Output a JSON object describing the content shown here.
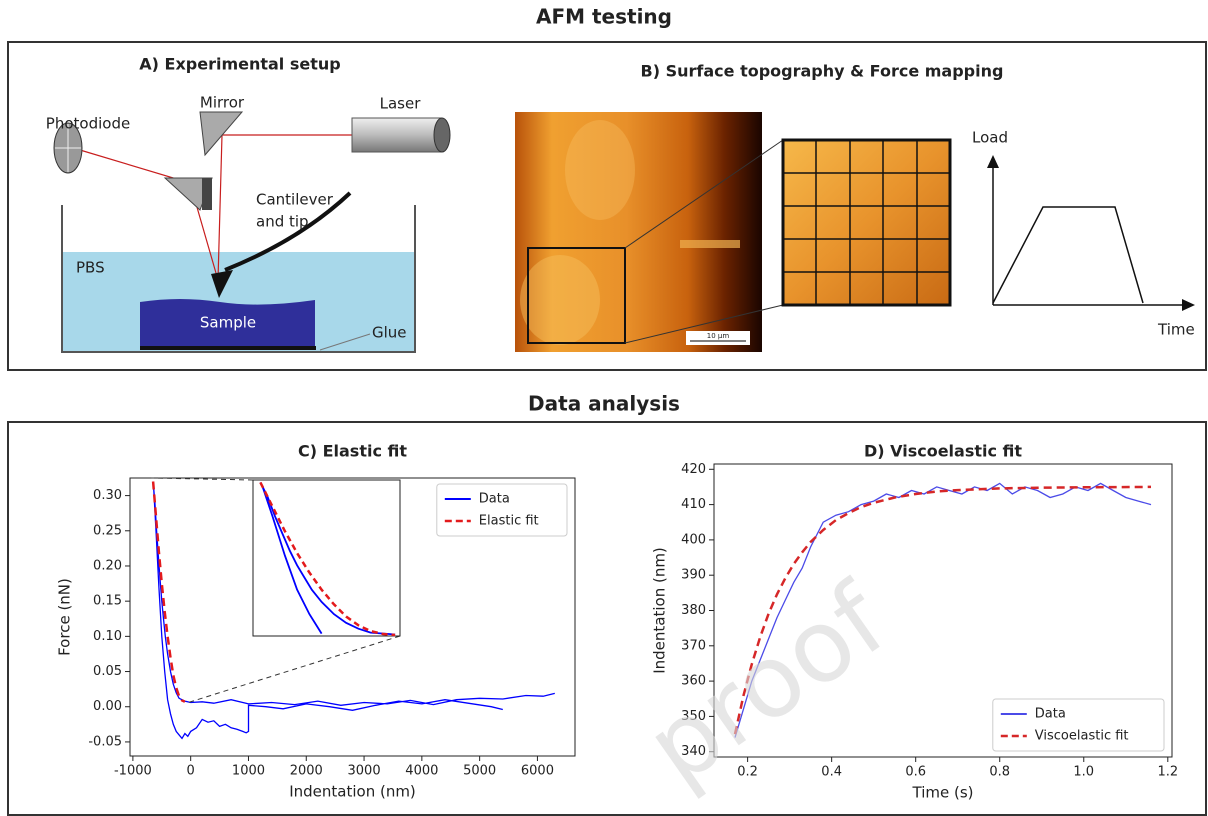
{
  "header": {
    "title": "AFM testing"
  },
  "setup": {
    "title": "A) Experimental setup",
    "labels": {
      "photodiode": "Photodiode",
      "mirror": "Mirror",
      "laser": "Laser",
      "cantilever": [
        "Cantilever",
        "and tip"
      ],
      "medium": "PBS",
      "sample": "Sample",
      "glue": "Glue"
    }
  },
  "mapping": {
    "title": "B) Surface topography & Force mapping",
    "scale_bar": "10 µm",
    "load": "Load",
    "time": "Time"
  },
  "analysis": {
    "title": "Data analysis"
  },
  "watermark": "proof",
  "chart_data": [
    {
      "type": "line",
      "title": "C) Elastic fit",
      "x_label": "Indentation (nm)",
      "y_label": "Force (nN)",
      "xlim": [
        -1050,
        6650
      ],
      "ylim": [
        -0.07,
        0.325
      ],
      "xticks": [
        -1000,
        0,
        1000,
        2000,
        3000,
        4000,
        5000,
        6000
      ],
      "yticks": [
        -0.05,
        {
          "value": 0,
          "label": "0.00"
        },
        0.05,
        {
          "value": 0.1,
          "label": "0.10"
        },
        0.15,
        {
          "value": 0.2,
          "label": "0.20"
        },
        0.25,
        {
          "value": 0.3,
          "label": "0.30"
        }
      ],
      "legend": "upper right",
      "inset_xlim": [
        -680,
        -80
      ],
      "inset_ylim": [
        0.005,
        0.325
      ],
      "series": [
        {
          "name": "Data",
          "color": "#0000ff",
          "linestyle": "solid",
          "x": [
            -650,
            -620,
            -590,
            -560,
            -530,
            -500,
            -470,
            -440,
            -400,
            -350,
            -300,
            -250,
            -200,
            -100,
            0,
            200,
            400,
            700,
            1000,
            1400,
            1800,
            2200,
            2600,
            3000,
            3400,
            3800,
            4200,
            4600,
            5000,
            5400,
            5800,
            6100,
            6300,
            null,
            -640,
            -600,
            -550,
            -500,
            -450,
            -400,
            -350,
            -300,
            -250,
            -200,
            -150,
            -100,
            -50,
            0,
            100,
            200,
            300,
            400,
            500,
            600,
            700,
            800,
            900,
            960,
            1000,
            1000,
            1300,
            1600,
            2000,
            2400,
            2800,
            3200,
            3600,
            4000,
            4400,
            4800,
            5200,
            5400
          ],
          "values": [
            0.32,
            0.29,
            0.25,
            0.215,
            0.18,
            0.15,
            0.125,
            0.1,
            0.075,
            0.05,
            0.032,
            0.02,
            0.012,
            0.008,
            0.006,
            0.007,
            0.005,
            0.01,
            0.004,
            0.006,
            0.003,
            0.008,
            0.002,
            0.006,
            0.004,
            0.009,
            0.003,
            0.01,
            0.012,
            0.011,
            0.016,
            0.015,
            0.019,
            null,
            0.31,
            0.25,
            0.17,
            0.1,
            0.05,
            0.01,
            -0.01,
            -0.025,
            -0.035,
            -0.04,
            -0.045,
            -0.038,
            -0.042,
            -0.035,
            -0.03,
            -0.018,
            -0.022,
            -0.02,
            -0.028,
            -0.025,
            -0.03,
            -0.032,
            -0.035,
            -0.037,
            -0.035,
            0.002,
            0.0,
            -0.003,
            0.004,
            0.0,
            -0.005,
            0.002,
            0.008,
            0.004,
            0.01,
            0.005,
            0.0,
            -0.004
          ]
        },
        {
          "name": "Elastic fit",
          "color": "#e31a1c",
          "linestyle": "dashed",
          "x": [
            -650,
            -600,
            -550,
            -500,
            -450,
            -400,
            -350,
            -300,
            -250,
            -200,
            -150,
            -100
          ],
          "values": [
            0.32,
            0.27,
            0.22,
            0.175,
            0.135,
            0.1,
            0.07,
            0.045,
            0.027,
            0.015,
            0.009,
            0.007
          ]
        }
      ]
    },
    {
      "type": "line",
      "title": "D) Viscoelastic fit",
      "x_label": "Time (s)",
      "y_label": "Indentation (nm)",
      "xlim": [
        0.12,
        1.21
      ],
      "ylim": [
        338.5,
        421.5
      ],
      "xticks": [
        0.2,
        0.4,
        0.6,
        0.8,
        {
          "value": 1,
          "label": "1.0"
        },
        1.2
      ],
      "yticks": [
        340,
        350,
        360,
        370,
        380,
        390,
        400,
        410,
        420
      ],
      "legend": "lower right",
      "series": [
        {
          "name": "Data",
          "color": "#4b4be8",
          "linestyle": "solid",
          "x": [
            0.17,
            0.19,
            0.21,
            0.23,
            0.25,
            0.27,
            0.29,
            0.31,
            0.33,
            0.35,
            0.38,
            0.41,
            0.44,
            0.47,
            0.5,
            0.53,
            0.56,
            0.59,
            0.62,
            0.65,
            0.68,
            0.71,
            0.74,
            0.77,
            0.8,
            0.83,
            0.86,
            0.89,
            0.92,
            0.95,
            0.98,
            1.01,
            1.04,
            1.07,
            1.1,
            1.13,
            1.16
          ],
          "values": [
            344,
            352,
            360,
            366,
            372,
            378,
            383,
            388,
            392,
            398,
            405,
            407,
            408,
            410,
            411,
            413,
            412,
            414,
            413,
            415,
            414,
            413,
            415,
            414,
            416,
            413,
            415,
            414,
            412,
            413,
            415,
            414,
            416,
            414,
            412,
            411,
            410
          ]
        },
        {
          "name": "Viscoelastic fit",
          "color": "#d62728",
          "linestyle": "dashed",
          "x": [
            0.17,
            0.19,
            0.21,
            0.23,
            0.25,
            0.27,
            0.29,
            0.31,
            0.33,
            0.35,
            0.38,
            0.41,
            0.44,
            0.47,
            0.5,
            0.55,
            0.6,
            0.65,
            0.7,
            0.8,
            0.9,
            1.0,
            1.16
          ],
          "values": [
            345,
            355.8,
            364.8,
            372.5,
            379.1,
            384.6,
            389.2,
            393.2,
            396.5,
            399.4,
            402.8,
            405.6,
            407.6,
            409.3,
            410.5,
            412.0,
            413.0,
            413.7,
            414.1,
            414.6,
            414.8,
            414.9,
            415
          ]
        }
      ]
    }
  ]
}
